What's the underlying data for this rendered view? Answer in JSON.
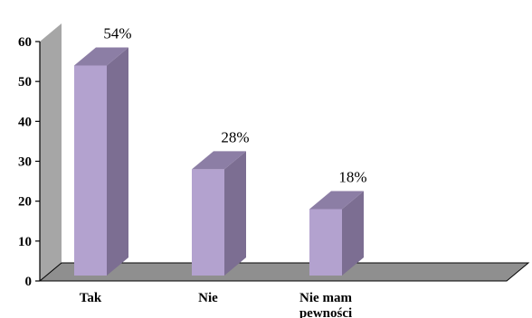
{
  "chart_data": {
    "type": "bar",
    "categories": [
      "Tak",
      "Nie",
      "Nie mam pewności"
    ],
    "values": [
      54,
      28,
      18
    ],
    "data_labels": [
      "54%",
      "28%",
      "18%"
    ],
    "y_ticks": [
      "0",
      "10",
      "20",
      "30",
      "40",
      "50",
      "60"
    ],
    "ylim": [
      0,
      60
    ],
    "grid": false,
    "legend": false,
    "three_d": true,
    "colors": {
      "bar_front": "#b3a2cf",
      "bar_side": "#7c6e92",
      "bar_top": "#8c7ea5",
      "wall": "#a6a6a6",
      "floor": "#8f8f8f"
    }
  }
}
